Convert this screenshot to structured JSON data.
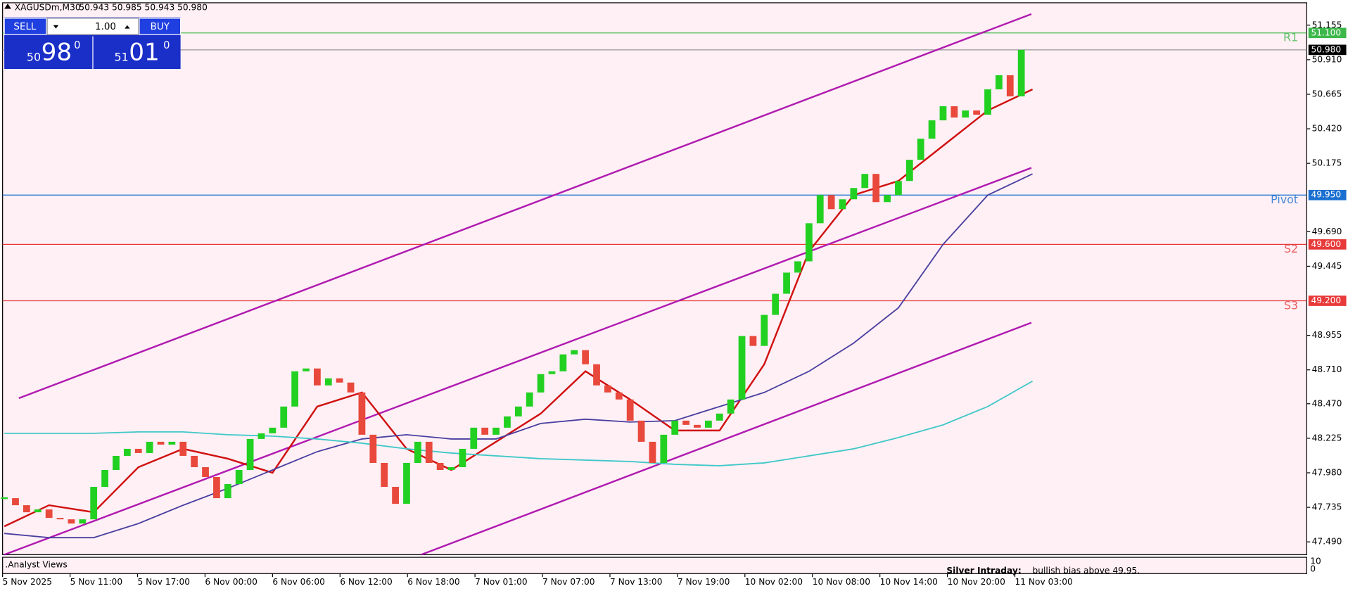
{
  "header": {
    "symbol": "XAGUSDm,M30",
    "quote": "50.943 50.985 50.943 50.980"
  },
  "trade_panel": {
    "sell": "SELL",
    "buy": "BUY",
    "volume": "1.00",
    "sell_price": {
      "big": "50",
      "main": "98",
      "sup": "0"
    },
    "buy_price": {
      "big": "51",
      "main": "01",
      "sup": "0"
    }
  },
  "chart": {
    "ylim": [
      47.399,
      51.314
    ],
    "yticks": [
      {
        "value": 51.155,
        "label": "51.155"
      },
      {
        "value": 50.91,
        "label": "50.910"
      },
      {
        "value": 50.665,
        "label": "50.665"
      },
      {
        "value": 50.42,
        "label": "50.420"
      },
      {
        "value": 50.175,
        "label": "50.175"
      },
      {
        "value": 49.69,
        "label": "49.690"
      },
      {
        "value": 49.445,
        "label": "49.445"
      },
      {
        "value": 48.955,
        "label": "48.955"
      },
      {
        "value": 48.71,
        "label": "48.710"
      },
      {
        "value": 48.47,
        "label": "48.470"
      },
      {
        "value": 48.225,
        "label": "48.225"
      },
      {
        "value": 47.98,
        "label": "47.980"
      },
      {
        "value": 47.735,
        "label": "47.735"
      },
      {
        "value": 47.49,
        "label": "47.490"
      }
    ],
    "xlabels": [
      "5 Nov 2025",
      "5 Nov 11:00",
      "5 Nov 17:00",
      "6 Nov 00:00",
      "6 Nov 06:00",
      "6 Nov 12:00",
      "6 Nov 18:00",
      "7 Nov 01:00",
      "7 Nov 07:00",
      "7 Nov 13:00",
      "7 Nov 19:00",
      "10 Nov 02:00",
      "10 Nov 08:00",
      "10 Nov 14:00",
      "10 Nov 20:00",
      "11 Nov 03:00"
    ],
    "closes": [
      47.8,
      47.75,
      47.7,
      47.72,
      47.66,
      47.65,
      47.62,
      47.65,
      47.88,
      48.0,
      48.1,
      48.15,
      48.12,
      48.2,
      48.18,
      48.2,
      48.1,
      48.02,
      47.95,
      47.8,
      47.9,
      48.0,
      48.22,
      48.26,
      48.3,
      48.45,
      48.7,
      48.72,
      48.6,
      48.65,
      48.62,
      48.55,
      48.25,
      48.05,
      47.88,
      47.76,
      48.05,
      48.2,
      48.05,
      48.0,
      48.02,
      48.15,
      48.3,
      48.25,
      48.3,
      48.38,
      48.45,
      48.55,
      48.68,
      48.7,
      48.82,
      48.85,
      48.75,
      48.6,
      48.55,
      48.5,
      48.35,
      48.2,
      48.05,
      48.25,
      48.35,
      48.32,
      48.3,
      48.35,
      48.4,
      48.5,
      48.95,
      48.88,
      49.1,
      49.25,
      49.4,
      49.48,
      49.75,
      49.95,
      49.85,
      49.92,
      50.0,
      50.1,
      49.9,
      49.95,
      50.05,
      50.2,
      50.35,
      50.48,
      50.58,
      50.5,
      50.55,
      50.52,
      50.7,
      50.8,
      50.65,
      50.98
    ],
    "up_color": "#22d022",
    "down_color": "#e8493c",
    "indicators": [
      {
        "color": "#d01010",
        "values": [
          47.6,
          47.75,
          47.7,
          48.02,
          48.15,
          48.08,
          47.98,
          48.45,
          48.55,
          48.15,
          48.0,
          48.2,
          48.4,
          48.7,
          48.5,
          48.28,
          48.28,
          48.75,
          49.55,
          49.95,
          50.05,
          50.3,
          50.55,
          50.7
        ]
      },
      {
        "color": "#4a3fa0",
        "values": [
          47.55,
          47.52,
          47.52,
          47.62,
          47.75,
          47.87,
          48.0,
          48.13,
          48.22,
          48.25,
          48.22,
          48.22,
          48.33,
          48.36,
          48.34,
          48.35,
          48.45,
          48.55,
          48.7,
          48.9,
          49.15,
          49.6,
          49.95,
          50.1
        ]
      },
      {
        "color": "#40c8c8",
        "values": [
          48.26,
          48.26,
          48.26,
          48.27,
          48.27,
          48.25,
          48.24,
          48.22,
          48.19,
          48.15,
          48.12,
          48.1,
          48.08,
          48.07,
          48.06,
          48.04,
          48.03,
          48.05,
          48.1,
          48.15,
          48.23,
          48.32,
          48.45,
          48.63
        ]
      }
    ],
    "trendlines": [
      {
        "color": "#b01ab0",
        "from": [
          1.3,
          48.509
        ],
        "to": [
          91.9,
          51.234
        ]
      },
      {
        "color": "#b01ab0",
        "from": [
          0,
          47.399
        ],
        "to": [
          91.9,
          50.143
        ]
      },
      {
        "color": "#b01ab0",
        "from": [
          37.3,
          47.399
        ],
        "to": [
          91.9,
          49.045
        ]
      }
    ],
    "levels": [
      {
        "name": "R1",
        "value": 51.1,
        "label": "51.100",
        "color": "#3cb84a"
      },
      {
        "value": 50.98,
        "label": "50.980",
        "color": "#000000"
      },
      {
        "name": "Pivot",
        "value": 49.95,
        "label": "49.950",
        "color": "#1a6fd0"
      },
      {
        "name": "S2",
        "value": 49.6,
        "label": "49.600",
        "color": "#e83a3a"
      },
      {
        "name": "S3",
        "value": 49.2,
        "label": "49.200",
        "color": "#e83a3a"
      }
    ]
  },
  "subwindow": {
    "name": ".Analyst Views",
    "ticks": [
      "10",
      "0"
    ]
  },
  "note": {
    "title": "Silver Intraday:",
    "text": "bullish bias above 49.95."
  }
}
